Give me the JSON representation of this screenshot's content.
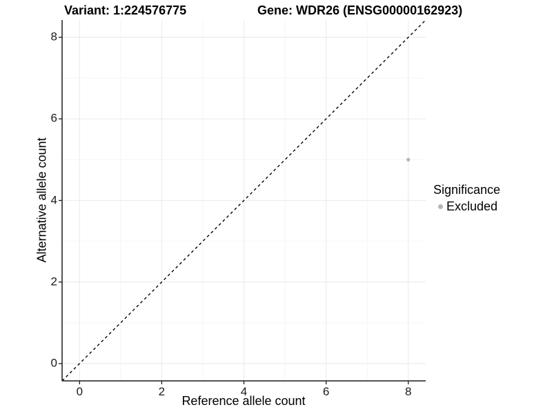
{
  "figure": {
    "title_left": "Variant: 1:224576775",
    "title_right": "Gene: WDR26 (ENSG00000162923)"
  },
  "axes": {
    "x": {
      "label": "Reference allele count"
    },
    "y": {
      "label": "Alternative allele count"
    }
  },
  "legend": {
    "title": "Significance",
    "entries": [
      {
        "label": "Excluded",
        "color": "#b4b4b4"
      }
    ]
  },
  "chart_data": {
    "type": "scatter",
    "title": "Variant: 1:224576775    Gene: WDR26 (ENSG00000162923)",
    "xlabel": "Reference allele count",
    "ylabel": "Alternative allele count",
    "xlim": [
      -0.425,
      8.425
    ],
    "ylim": [
      -0.425,
      8.425
    ],
    "x_ticks": [
      0,
      2,
      4,
      6,
      8
    ],
    "y_ticks": [
      0,
      2,
      4,
      6,
      8
    ],
    "x_minor_ticks": [
      1,
      3,
      5,
      7
    ],
    "y_minor_ticks": [
      1,
      3,
      5,
      7
    ],
    "grid": {
      "on": true,
      "major_color": "#ececec",
      "minor_color": "#f5f5f5"
    },
    "axis_color": "#1a1a1a",
    "identity_line": {
      "slope": 1,
      "intercept": 0,
      "style": "dashed",
      "color": "#000000"
    },
    "series": [
      {
        "name": "Excluded",
        "color": "#b4b4b4",
        "marker": "circle",
        "point_radius": 2.6,
        "points": [
          {
            "x": 8,
            "y": 5
          }
        ]
      }
    ],
    "legend_position": "right",
    "legend_title": "Significance"
  }
}
